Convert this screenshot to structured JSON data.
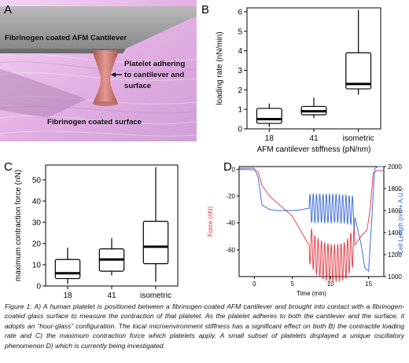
{
  "panels": {
    "a": {
      "letter": "A",
      "cantilever_label": "Fibrinogen coated AFM Cantilever",
      "platelet_label_1": "Platelet adhering",
      "platelet_label_2": "to cantilever and",
      "platelet_label_3": "surface",
      "surface_label": "Fibrinogen coated surface",
      "colors": {
        "background": "#e6b7e6",
        "cantilever": "#9a9a9a",
        "platelet": "#c8706a"
      }
    },
    "b": {
      "letter": "B"
    },
    "c": {
      "letter": "C"
    },
    "d": {
      "letter": "D"
    }
  },
  "caption": "Figure 1: A) A human platelet is positioned between a fibrinogen-coated AFM cantilever and brought into contact with a fibrinogen-coated glass surface to measure the contraction of that platelet. As the platelet adheres to both the cantilever and the surface, it adopts an “hour-glass” configuration. The local microenvironment stiffness has a significant effect on both B) the contractile loading rate and C) the maximum contraction force which platelets apply. A small subset of platelets displayed a unique oscillatory phenomenon D) which is currently being investigated.",
  "chart_data": [
    {
      "panel": "B",
      "type": "box",
      "categories": [
        "18",
        "41",
        "isometric"
      ],
      "boxes": [
        {
          "min": 0.1,
          "q1": 0.28,
          "median": 0.5,
          "q3": 1.05,
          "max": 1.3
        },
        {
          "min": 0.55,
          "q1": 0.72,
          "median": 0.9,
          "q3": 1.15,
          "max": 1.6
        },
        {
          "min": 1.75,
          "q1": 2.05,
          "median": 2.3,
          "q3": 3.9,
          "max": 6.1
        }
      ],
      "ylabel": "loading rate (nN/min)",
      "xlabel": "AFM cantilever stiffness (pN/nm)",
      "ylim": [
        0,
        6.2
      ],
      "yticks": [
        0,
        1,
        2,
        3,
        4,
        5,
        6
      ]
    },
    {
      "panel": "C",
      "type": "box",
      "categories": [
        "18",
        "41",
        "isometric"
      ],
      "boxes": [
        {
          "min": 1,
          "q1": 3.5,
          "median": 6,
          "q3": 12.5,
          "max": 18
        },
        {
          "min": 5,
          "q1": 7,
          "median": 12.5,
          "q3": 17.5,
          "max": 22.5
        },
        {
          "min": 2,
          "q1": 10.5,
          "median": 18.5,
          "q3": 30.5,
          "max": 56
        }
      ],
      "ylabel": "maximum contraction force (nN)",
      "xlabel": "AFM cantilever stiffness (pN/nm)",
      "ylim": [
        0,
        57
      ],
      "yticks": [
        0,
        10,
        20,
        30,
        40,
        50
      ]
    },
    {
      "panel": "D",
      "type": "line",
      "xlabel": "Time (min)",
      "ylabel_left": "Force (nN)",
      "ylabel_right": "Cell Length (nm + A.U.)",
      "xlim": [
        -2,
        17
      ],
      "xticks": [
        0,
        5,
        10,
        15
      ],
      "ylim_left": [
        -80,
        2
      ],
      "yticks_left": [
        0,
        -20,
        -40,
        -60
      ],
      "ylim_right": [
        1000,
        2000
      ],
      "yticks_right": [
        1000,
        1200,
        1400,
        1600,
        1800,
        2000
      ],
      "series": [
        {
          "name": "Force (nN)",
          "color": "#e0303a",
          "axis": "left",
          "points": [
            [
              -2,
              0
            ],
            [
              0,
              -0.5
            ],
            [
              0.5,
              -2
            ],
            [
              1,
              -12
            ],
            [
              2,
              -20
            ],
            [
              3,
              -25
            ],
            [
              4,
              -30
            ],
            [
              5,
              -35
            ],
            [
              6,
              -45
            ],
            [
              7,
              -55
            ],
            [
              7.5,
              -58
            ],
            [
              8,
              -64
            ],
            [
              9,
              -68
            ],
            [
              10,
              -70
            ],
            [
              11,
              -70
            ],
            [
              12,
              -68
            ],
            [
              13,
              -58
            ],
            [
              14,
              -50
            ],
            [
              14.8,
              -45
            ],
            [
              15.2,
              -30
            ],
            [
              15.6,
              -3
            ],
            [
              16,
              -1
            ],
            [
              17,
              -1
            ]
          ],
          "oscillation": {
            "start": 7.2,
            "end": 13.2,
            "cycles": 14,
            "amplitude": 14
          }
        },
        {
          "name": "Cell Length (nm + A.U.)",
          "color": "#2e5fd0",
          "axis": "right",
          "points": [
            [
              -2,
              1985
            ],
            [
              0,
              1985
            ],
            [
              0.5,
              1900
            ],
            [
              1,
              1650
            ],
            [
              2,
              1610
            ],
            [
              3,
              1600
            ],
            [
              4,
              1600
            ],
            [
              5,
              1600
            ],
            [
              6,
              1605
            ],
            [
              7,
              1620
            ],
            [
              8,
              1620
            ],
            [
              9,
              1620
            ],
            [
              10,
              1620
            ],
            [
              11,
              1620
            ],
            [
              12,
              1610
            ],
            [
              13,
              1600
            ],
            [
              14,
              1300
            ],
            [
              14.5,
              1080
            ],
            [
              15,
              1050
            ],
            [
              15.4,
              1500
            ],
            [
              15.8,
              1980
            ],
            [
              16.2,
              2000
            ],
            [
              17,
              2000
            ]
          ],
          "oscillation": {
            "start": 7.2,
            "end": 13.2,
            "cycles": 14,
            "amplitude": 130
          }
        }
      ]
    }
  ]
}
